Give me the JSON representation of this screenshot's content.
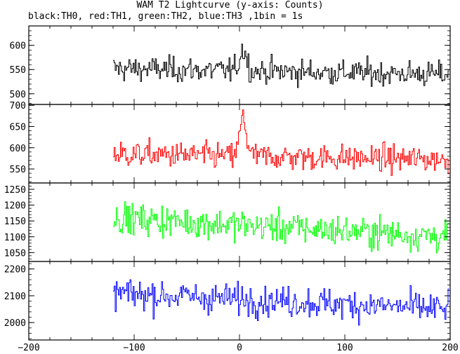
{
  "chart_data": {
    "type": "line",
    "title": "WAM T2 Lightcurve (y-axis: Counts)",
    "subtitle": "black:TH0, red:TH1, green:TH2, blue:TH3 ,1bin = 1s",
    "xlim": [
      -200,
      200
    ],
    "x_ticks": [
      -200,
      -100,
      0,
      100,
      200
    ],
    "x_start": -120,
    "x_end": 198,
    "bin": 1,
    "grid": false,
    "panels": [
      {
        "name": "TH0",
        "color": "#000000",
        "ylim": [
          478,
          640
        ],
        "y_ticks": [
          500,
          550,
          600
        ],
        "baseline": 545,
        "noise": 18,
        "peak_amplitude": 45,
        "trend": [
          [
            -120,
            552
          ],
          [
            200,
            540
          ]
        ]
      },
      {
        "name": "TH1",
        "color": "#ff0000",
        "ylim": [
          517,
          702
        ],
        "y_ticks": [
          550,
          600,
          650,
          700
        ],
        "baseline": 580,
        "noise": 22,
        "peak_amplitude": 90,
        "trend": [
          [
            -120,
            585
          ],
          [
            200,
            572
          ]
        ]
      },
      {
        "name": "TH2",
        "color": "#00ff00",
        "ylim": [
          1022,
          1270
        ],
        "y_ticks": [
          1050,
          1100,
          1150,
          1200,
          1250
        ],
        "baseline": 1130,
        "noise": 35,
        "peak_amplitude": 0,
        "trend": [
          [
            -120,
            1160
          ],
          [
            200,
            1100
          ]
        ]
      },
      {
        "name": "TH3",
        "color": "#0000ff",
        "ylim": [
          1935,
          2228
        ],
        "y_ticks": [
          2000,
          2100,
          2200
        ],
        "baseline": 2080,
        "noise": 40,
        "peak_amplitude": 0,
        "trend": [
          [
            -120,
            2110
          ],
          [
            200,
            2050
          ]
        ]
      }
    ],
    "peak_center": 3
  }
}
